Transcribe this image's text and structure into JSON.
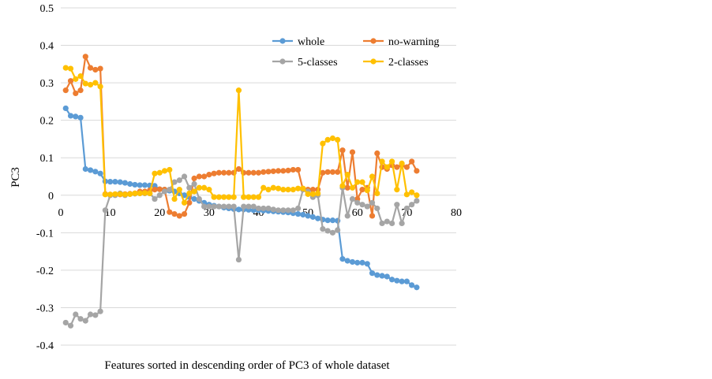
{
  "chart_data": {
    "type": "line",
    "title": "",
    "xlabel": "Features sorted in descending order of PC3 of whole dataset",
    "ylabel": "PC3",
    "xlim": [
      0,
      80
    ],
    "ylim": [
      -0.4,
      0.5
    ],
    "x_ticks": [
      "0",
      "10",
      "20",
      "30",
      "40",
      "50",
      "60",
      "70",
      "80"
    ],
    "y_ticks": [
      "-0.4",
      "-0.3",
      "-0.2",
      "-0.1",
      "0",
      "0.1",
      "0.2",
      "0.3",
      "0.4",
      "0.5"
    ],
    "grid": "horizontal",
    "legend_position": "top-right",
    "x": [
      1,
      2,
      3,
      4,
      5,
      6,
      7,
      8,
      9,
      10,
      11,
      12,
      13,
      14,
      15,
      16,
      17,
      18,
      19,
      20,
      21,
      22,
      23,
      24,
      25,
      26,
      27,
      28,
      29,
      30,
      31,
      32,
      33,
      34,
      35,
      36,
      37,
      38,
      39,
      40,
      41,
      42,
      43,
      44,
      45,
      46,
      47,
      48,
      49,
      50,
      51,
      52,
      53,
      54,
      55,
      56,
      57,
      58,
      59,
      60,
      61,
      62,
      63,
      64,
      65,
      66,
      67,
      68,
      69,
      70,
      71,
      72
    ],
    "series": [
      {
        "name": "whole",
        "color": "#5b9bd5",
        "values": [
          0.232,
          0.212,
          0.21,
          0.207,
          0.07,
          0.067,
          0.063,
          0.058,
          0.037,
          0.036,
          0.036,
          0.035,
          0.033,
          0.03,
          0.028,
          0.027,
          0.027,
          0.026,
          0.025,
          0.016,
          0.015,
          0.012,
          0.01,
          0.005,
          0.0,
          -0.005,
          -0.01,
          -0.015,
          -0.02,
          -0.025,
          -0.028,
          -0.03,
          -0.033,
          -0.035,
          -0.037,
          -0.038,
          -0.038,
          -0.039,
          -0.04,
          -0.04,
          -0.041,
          -0.042,
          -0.043,
          -0.044,
          -0.045,
          -0.046,
          -0.048,
          -0.05,
          -0.052,
          -0.055,
          -0.058,
          -0.062,
          -0.065,
          -0.067,
          -0.067,
          -0.068,
          -0.17,
          -0.175,
          -0.178,
          -0.18,
          -0.18,
          -0.183,
          -0.208,
          -0.213,
          -0.215,
          -0.217,
          -0.225,
          -0.228,
          -0.23,
          -0.23,
          -0.24,
          -0.246
        ]
      },
      {
        "name": "no-warning",
        "color": "#ed7d31",
        "values": [
          0.28,
          0.305,
          0.272,
          0.28,
          0.37,
          0.34,
          0.335,
          0.338,
          0.003,
          0.002,
          0.002,
          0.002,
          0.003,
          0.004,
          0.005,
          0.01,
          0.01,
          0.013,
          0.015,
          0.016,
          0.015,
          -0.045,
          -0.05,
          -0.055,
          -0.05,
          -0.02,
          0.045,
          0.05,
          0.05,
          0.055,
          0.058,
          0.06,
          0.06,
          0.06,
          0.06,
          0.07,
          0.06,
          0.06,
          0.06,
          0.06,
          0.062,
          0.063,
          0.064,
          0.065,
          0.065,
          0.066,
          0.068,
          0.068,
          0.015,
          0.015,
          0.015,
          0.015,
          0.06,
          0.062,
          0.062,
          0.062,
          0.12,
          0.02,
          0.115,
          -0.01,
          0.015,
          0.02,
          -0.055,
          0.112,
          0.075,
          0.07,
          0.08,
          0.075,
          0.08,
          0.075,
          0.09,
          0.065
        ]
      },
      {
        "name": "5-classes",
        "color": "#a5a5a5",
        "values": [
          -0.34,
          -0.348,
          -0.318,
          -0.33,
          -0.335,
          -0.318,
          -0.32,
          -0.31,
          -0.04,
          0.0,
          0.0,
          0.005,
          0.0,
          0.003,
          0.004,
          0.005,
          0.005,
          0.005,
          -0.01,
          0.0,
          0.01,
          0.015,
          0.035,
          0.04,
          0.05,
          0.02,
          0.03,
          -0.01,
          -0.03,
          -0.03,
          -0.03,
          -0.03,
          -0.03,
          -0.03,
          -0.03,
          -0.172,
          -0.03,
          -0.03,
          -0.03,
          -0.035,
          -0.035,
          -0.035,
          -0.038,
          -0.04,
          -0.04,
          -0.04,
          -0.04,
          -0.035,
          0.015,
          0.01,
          -0.005,
          0.0,
          -0.09,
          -0.095,
          -0.1,
          -0.093,
          0.02,
          -0.055,
          -0.01,
          -0.02,
          -0.025,
          -0.03,
          -0.02,
          -0.035,
          -0.075,
          -0.07,
          -0.075,
          -0.025,
          -0.075,
          -0.035,
          -0.025,
          -0.015
        ]
      },
      {
        "name": "2-classes",
        "color": "#ffc000",
        "values": [
          0.34,
          0.338,
          0.31,
          0.318,
          0.298,
          0.295,
          0.3,
          0.29,
          0.002,
          0.002,
          0.003,
          0.003,
          0.002,
          0.003,
          0.005,
          0.005,
          0.006,
          0.005,
          0.058,
          0.06,
          0.065,
          0.068,
          -0.01,
          0.015,
          -0.02,
          0.005,
          0.01,
          0.02,
          0.02,
          0.015,
          -0.005,
          -0.005,
          -0.005,
          -0.005,
          -0.005,
          0.28,
          -0.005,
          -0.005,
          -0.005,
          -0.005,
          0.02,
          0.015,
          0.02,
          0.018,
          0.015,
          0.015,
          0.015,
          0.018,
          0.018,
          0.003,
          0.003,
          0.005,
          0.138,
          0.148,
          0.152,
          0.148,
          0.025,
          0.055,
          0.02,
          0.035,
          0.035,
          0.013,
          0.05,
          0.005,
          0.09,
          0.075,
          0.09,
          0.015,
          0.085,
          0.002,
          0.008,
          0.0
        ]
      }
    ]
  }
}
